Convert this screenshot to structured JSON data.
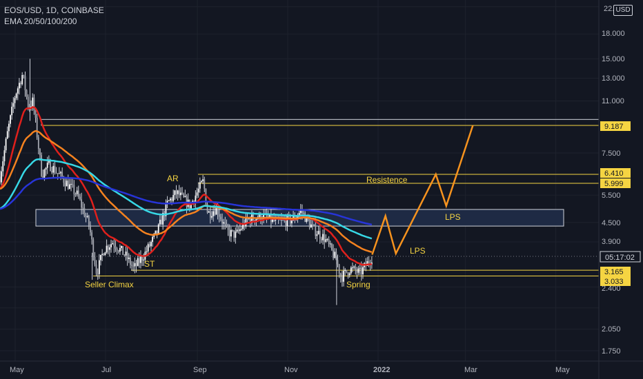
{
  "header": {
    "title": "EOS/USD, 1D, COINBASE",
    "indicator": "EMA 20/50/100/200",
    "currency": "USD"
  },
  "chart_data": {
    "type": "candlestick",
    "symbol": "EOS/USD",
    "interval": "1D",
    "exchange": "COINBASE",
    "y_scale": "log",
    "ylim": [
      1.55,
      22
    ],
    "y_ticks": [
      "22.000",
      "18.000",
      "15.000",
      "13.000",
      "11.000",
      "9.187",
      "7.500",
      "6.410",
      "5.999",
      "5.500",
      "4.500",
      "3.900",
      "3.165",
      "3.033",
      "2.400",
      "2.050",
      "1.750"
    ],
    "x_labels": [
      "May",
      "Jul",
      "Sep",
      "Nov",
      "2022",
      "Mar",
      "May"
    ],
    "countdown": "05:17:02",
    "price_levels": [
      {
        "label": "9.187",
        "value": 9.187,
        "color": "#f5d442"
      },
      {
        "label": "6.410",
        "value": 6.41,
        "color": "#f5d442"
      },
      {
        "label": "5.999",
        "value": 5.999,
        "color": "#f5d442"
      },
      {
        "label": "3.165",
        "value": 3.165,
        "color": "#f5d442"
      },
      {
        "label": "3.033",
        "value": 3.033,
        "color": "#f5d442"
      }
    ],
    "annotations": [
      {
        "text": "AR"
      },
      {
        "text": "Resistence"
      },
      {
        "text": "ST"
      },
      {
        "text": "Seller Climax"
      },
      {
        "text": "Spring"
      },
      {
        "text": "LPS"
      },
      {
        "text": "LPS"
      }
    ],
    "ema_colors": {
      "ema20": "#e0201c",
      "ema50": "#f5821f",
      "ema100": "#37d8e6",
      "ema200": "#2734d8"
    },
    "projection_color": "#f7931e",
    "projection_path": [
      {
        "date": "2021-12-28",
        "price": 3.55
      },
      {
        "date": "2022-01-06",
        "price": 4.72
      },
      {
        "date": "2022-01-13",
        "price": 3.58
      },
      {
        "date": "2022-02-09",
        "price": 6.41
      },
      {
        "date": "2022-02-16",
        "price": 5.08
      },
      {
        "date": "2022-03-06",
        "price": 9.187
      }
    ]
  }
}
